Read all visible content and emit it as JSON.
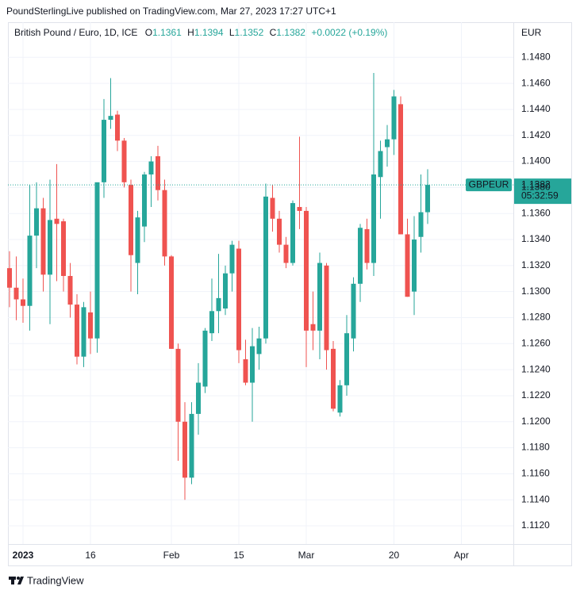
{
  "publisher_line": "PoundSterlingLive published on TradingView.com, Mar 27, 2023 17:27 UTC+1",
  "footer": "TradingView",
  "chart_data": {
    "type": "candlestick",
    "title": "British Pound / Euro, 1D, ICE",
    "legend_labels": {
      "open": "O",
      "high": "H",
      "low": "L",
      "close": "C"
    },
    "change": "+0.0022 (+0.19%)",
    "currency": "EUR",
    "symbol": "GBPEUR",
    "countdown": "05:32:59",
    "up_color": "#26a69a",
    "down_color": "#ef5350",
    "grid": true,
    "categories": [
      null,
      null,
      "2023",
      null,
      null,
      null,
      null,
      null,
      null,
      null,
      null,
      null,
      "16",
      null,
      null,
      null,
      null,
      null,
      null,
      null,
      null,
      null,
      null,
      null,
      "Feb",
      null,
      null,
      null,
      null,
      null,
      null,
      null,
      null,
      null,
      "15",
      null,
      null,
      null,
      null,
      null,
      null,
      null,
      null,
      null,
      "Mar",
      null,
      null,
      null,
      null,
      null,
      null,
      null,
      null,
      null,
      null,
      null,
      null,
      "20",
      null,
      null,
      null,
      null,
      null,
      null,
      null,
      null,
      null,
      "Apr"
    ],
    "open": [
      1.1318,
      1.1303,
      1.1294,
      1.1289,
      1.1343,
      1.1364,
      1.1313,
      1.1356,
      1.1354,
      1.1312,
      1.129,
      1.125,
      1.1284,
      1.1264,
      1.1384,
      1.1432,
      1.1436,
      1.1416,
      1.1382,
      1.1322,
      1.135,
      1.139,
      1.1404,
      1.1378,
      1.1327,
      1.1256,
      1.12,
      1.1157,
      1.1206,
      1.1227,
      1.1268,
      1.1285,
      1.1287,
      1.1314,
      1.1333,
      1.1248,
      1.123,
      1.1252,
      1.1264,
      1.1372,
      1.1356,
      1.1336,
      1.1322,
      1.1365,
      1.1362,
      1.1275,
      1.127,
      1.132,
      1.1256,
      1.1207,
      1.1228,
      1.1264,
      1.1306,
      1.1348,
      1.1322,
      1.1388,
      1.1411,
      1.1417,
      1.1444,
      1.1344,
      1.13,
      1.1342,
      1.1361,
      null,
      null,
      null,
      null,
      null
    ],
    "high": [
      1.1331,
      1.1327,
      1.131,
      1.1382,
      1.1384,
      1.1372,
      1.1386,
      1.1398,
      1.1356,
      1.1322,
      1.1298,
      1.1292,
      1.13,
      1.1382,
      1.1448,
      1.1464,
      1.1439,
      1.1418,
      1.1386,
      1.1362,
      1.1392,
      1.1404,
      1.1412,
      1.1386,
      1.1328,
      1.126,
      1.1215,
      1.1215,
      1.1245,
      1.1272,
      1.131,
      1.1329,
      1.132,
      1.1339,
      1.1339,
      1.1263,
      1.1272,
      1.1273,
      1.1383,
      1.1382,
      1.1362,
      1.1342,
      1.137,
      1.1419,
      1.1365,
      1.13,
      1.133,
      1.1322,
      1.1262,
      1.1232,
      1.1282,
      1.1311,
      1.1352,
      1.1356,
      1.1468,
      1.1416,
      1.1428,
      1.1455,
      1.145,
      1.1356,
      1.1358,
      1.139,
      1.1394,
      null,
      null,
      null,
      null,
      null
    ],
    "low": [
      1.1288,
      1.1278,
      1.1276,
      1.127,
      1.1318,
      1.13,
      1.1275,
      1.1308,
      1.13,
      1.128,
      1.1244,
      1.1242,
      1.1252,
      1.1253,
      1.1372,
      1.1425,
      1.1408,
      1.138,
      1.13,
      1.1298,
      1.1338,
      1.1365,
      1.137,
      1.132,
      1.1256,
      1.117,
      1.114,
      1.1152,
      1.119,
      1.1222,
      1.1262,
      1.1268,
      1.1282,
      1.13,
      1.1245,
      1.1228,
      1.12,
      1.124,
      1.126,
      1.1346,
      1.133,
      1.1318,
      1.132,
      1.1348,
      1.1242,
      1.1255,
      1.1248,
      1.124,
      1.1208,
      1.1204,
      1.122,
      1.1254,
      1.1292,
      1.1317,
      1.1312,
      1.1356,
      1.1396,
      1.1405,
      1.1344,
      1.1296,
      1.1282,
      1.133,
      1.1352,
      null,
      null,
      null,
      null,
      null
    ],
    "close": [
      1.1303,
      1.1294,
      1.1289,
      1.1343,
      1.1364,
      1.1313,
      1.1355,
      1.1352,
      1.1312,
      1.129,
      1.125,
      1.1288,
      1.1264,
      1.1384,
      1.1432,
      1.1435,
      1.1416,
      1.1384,
      1.1328,
      1.1357,
      1.139,
      1.14,
      1.1378,
      1.1327,
      1.1256,
      1.12,
      1.1157,
      1.1206,
      1.123,
      1.127,
      1.1285,
      1.1295,
      1.1314,
      1.1336,
      1.1255,
      1.123,
      1.1258,
      1.1264,
      1.1373,
      1.1356,
      1.1336,
      1.1322,
      1.1368,
      1.1362,
      1.127,
      1.127,
      1.1322,
      1.1255,
      1.121,
      1.1228,
      1.1268,
      1.1306,
      1.1349,
      1.1322,
      1.139,
      1.1408,
      1.1417,
      1.145,
      1.1344,
      1.1296,
      1.134,
      1.1361,
      1.1382,
      null,
      null,
      null,
      null,
      null
    ],
    "ylim": [
      1.1106,
      1.1507
    ],
    "yticks": [
      {
        "value": 1.112,
        "label": "1.1120"
      },
      {
        "value": 1.114,
        "label": "1.1140"
      },
      {
        "value": 1.116,
        "label": "1.1160"
      },
      {
        "value": 1.118,
        "label": "1.1180"
      },
      {
        "value": 1.12,
        "label": "1.1200"
      },
      {
        "value": 1.122,
        "label": "1.1220"
      },
      {
        "value": 1.124,
        "label": "1.1240"
      },
      {
        "value": 1.126,
        "label": "1.1260"
      },
      {
        "value": 1.128,
        "label": "1.1280"
      },
      {
        "value": 1.13,
        "label": "1.1300"
      },
      {
        "value": 1.132,
        "label": "1.1320"
      },
      {
        "value": 1.134,
        "label": "1.1340"
      },
      {
        "value": 1.136,
        "label": "1.1360"
      },
      {
        "value": 1.138,
        "label": "1.1380"
      },
      {
        "value": 1.14,
        "label": "1.1400"
      },
      {
        "value": 1.142,
        "label": "1.1420"
      },
      {
        "value": 1.144,
        "label": "1.1440"
      },
      {
        "value": 1.146,
        "label": "1.1460"
      },
      {
        "value": 1.148,
        "label": "1.1480"
      }
    ]
  }
}
